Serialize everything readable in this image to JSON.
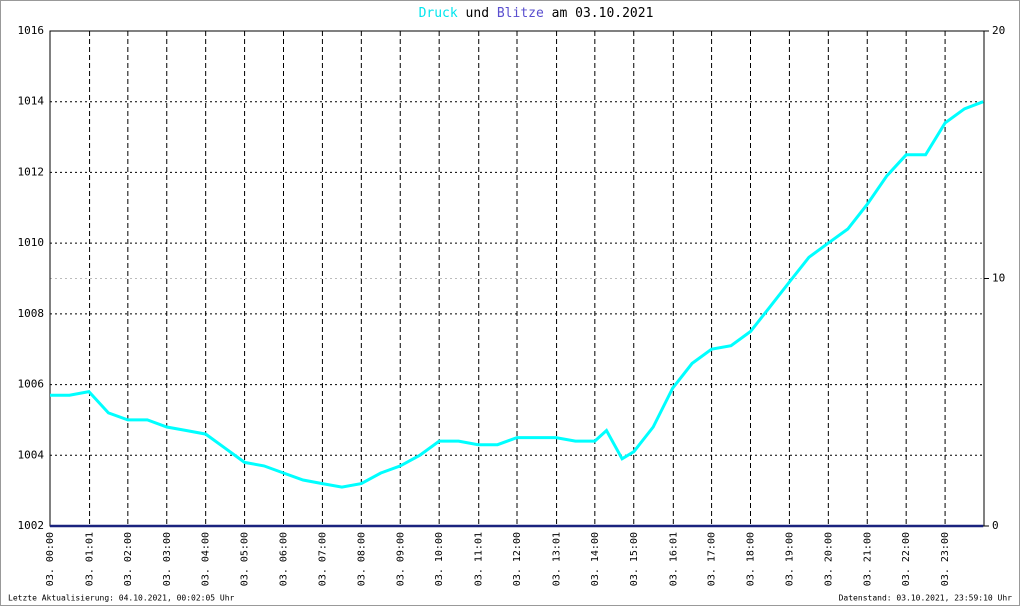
{
  "chart_data": {
    "type": "line",
    "title_connector": "und",
    "title_suffix": "am 03.10.2021",
    "x": [
      0,
      0.5,
      1,
      1.5,
      2,
      2.5,
      3,
      3.5,
      4,
      4.5,
      5,
      5.5,
      6,
      6.5,
      7,
      7.5,
      8,
      8.5,
      9,
      9.5,
      10,
      10.5,
      11,
      11.5,
      12,
      12.5,
      13,
      13.5,
      14,
      14.3,
      14.7,
      15,
      15.5,
      16,
      16.5,
      17,
      17.5,
      18,
      18.5,
      19,
      19.5,
      20,
      20.5,
      21,
      21.5,
      22,
      22.5,
      23,
      23.5,
      23.98
    ],
    "series": [
      {
        "name": "Druck",
        "color": "#00ffff",
        "values": [
          1005.7,
          1005.7,
          1005.8,
          1005.2,
          1005.0,
          1005.0,
          1004.8,
          1004.7,
          1004.6,
          1004.2,
          1003.8,
          1003.7,
          1003.5,
          1003.3,
          1003.2,
          1003.1,
          1003.2,
          1003.5,
          1003.7,
          1004.0,
          1004.4,
          1004.4,
          1004.3,
          1004.3,
          1004.5,
          1004.5,
          1004.5,
          1004.4,
          1004.4,
          1004.7,
          1003.9,
          1004.1,
          1004.8,
          1005.9,
          1006.6,
          1007.0,
          1007.1,
          1007.5,
          1008.2,
          1008.9,
          1009.6,
          1010.0,
          1010.4,
          1011.1,
          1011.9,
          1012.5,
          1012.5,
          1013.4,
          1013.8,
          1014.0
        ]
      },
      {
        "name": "Blitze",
        "color": "#1a237e",
        "axis": "y2",
        "values": [
          0,
          0,
          0,
          0,
          0,
          0,
          0,
          0,
          0,
          0,
          0,
          0,
          0,
          0,
          0,
          0,
          0,
          0,
          0,
          0,
          0,
          0,
          0,
          0,
          0,
          0,
          0,
          0,
          0,
          0,
          0,
          0,
          0,
          0,
          0,
          0,
          0,
          0,
          0,
          0,
          0,
          0,
          0,
          0,
          0,
          0,
          0,
          0,
          0,
          0
        ]
      }
    ],
    "xlim": [
      0,
      24
    ],
    "xticks": [
      {
        "value": 0,
        "label": "03. 00:00"
      },
      {
        "value": 1.0167,
        "label": "03. 01:01"
      },
      {
        "value": 2,
        "label": "03. 02:00"
      },
      {
        "value": 3,
        "label": "03. 03:00"
      },
      {
        "value": 4,
        "label": "03. 04:00"
      },
      {
        "value": 5,
        "label": "03. 05:00"
      },
      {
        "value": 6,
        "label": "03. 06:00"
      },
      {
        "value": 7,
        "label": "03. 07:00"
      },
      {
        "value": 8,
        "label": "03. 08:00"
      },
      {
        "value": 9,
        "label": "03. 09:00"
      },
      {
        "value": 10,
        "label": "03. 10:00"
      },
      {
        "value": 11.0167,
        "label": "03. 11:01"
      },
      {
        "value": 12,
        "label": "03. 12:00"
      },
      {
        "value": 13.0167,
        "label": "03. 13:01"
      },
      {
        "value": 14,
        "label": "03. 14:00"
      },
      {
        "value": 15,
        "label": "03. 15:00"
      },
      {
        "value": 16.0167,
        "label": "03. 16:01"
      },
      {
        "value": 17,
        "label": "03. 17:00"
      },
      {
        "value": 18,
        "label": "03. 18:00"
      },
      {
        "value": 19,
        "label": "03. 19:00"
      },
      {
        "value": 20,
        "label": "03. 20:00"
      },
      {
        "value": 21,
        "label": "03. 21:00"
      },
      {
        "value": 22,
        "label": "03. 22:00"
      },
      {
        "value": 23,
        "label": "03. 23:00"
      }
    ],
    "ylim": [
      1002,
      1016
    ],
    "yticks": [
      1002,
      1004,
      1006,
      1008,
      1010,
      1012,
      1014,
      1016
    ],
    "y2lim": [
      0,
      20
    ],
    "y2ticks": [
      0,
      10,
      20
    ],
    "grid": true
  },
  "footer": {
    "left": "Letzte Aktualisierung: 04.10.2021, 00:02:05 Uhr",
    "right": "Datenstand: 03.10.2021, 23:59:10 Uhr"
  }
}
